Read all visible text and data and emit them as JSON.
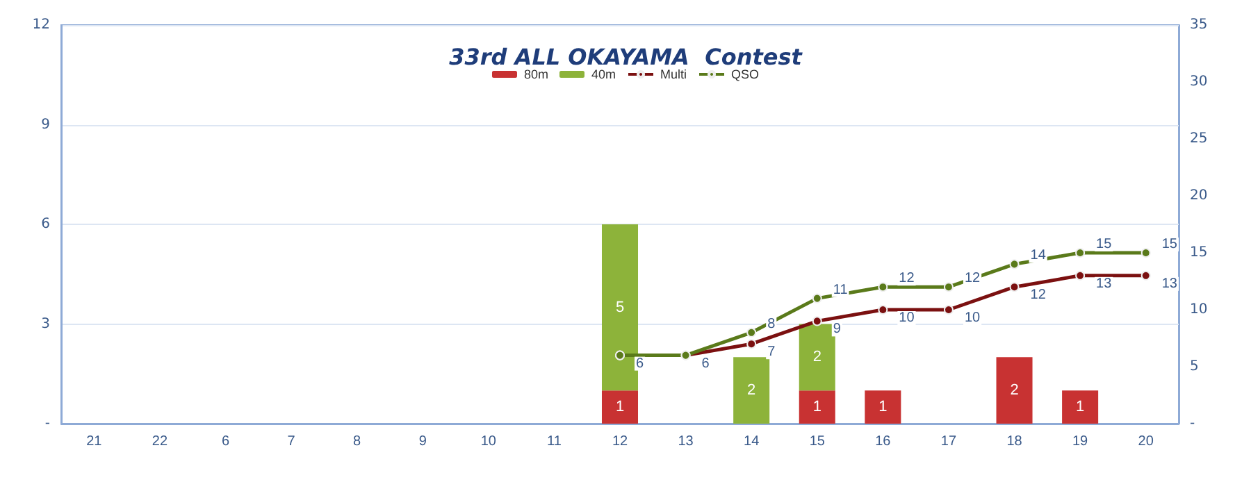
{
  "chart_data": {
    "type": "bar",
    "title": "33rd ALL OKAYAMA  Contest",
    "categories": [
      "21",
      "22",
      "6",
      "7",
      "8",
      "9",
      "10",
      "11",
      "12",
      "13",
      "14",
      "15",
      "16",
      "17",
      "18",
      "19",
      "20"
    ],
    "stacked": true,
    "data_labels": true,
    "legend": "top",
    "grid": "y",
    "marker": "circle",
    "ylim": [
      0,
      12
    ],
    "yticks": [
      {
        "value": 0,
        "label": "-"
      },
      3,
      6,
      9,
      12
    ],
    "y2lim": [
      0,
      35
    ],
    "y2ticks": [
      {
        "value": 0,
        "label": "-"
      },
      5,
      10,
      15,
      20,
      25,
      30,
      35
    ],
    "series": [
      {
        "name": "80m",
        "color": "#c83232",
        "values": [
          null,
          null,
          null,
          null,
          null,
          null,
          null,
          null,
          1,
          null,
          null,
          1,
          1,
          null,
          2,
          1,
          null
        ]
      },
      {
        "name": "40m",
        "color": "#8db33a",
        "values": [
          null,
          null,
          null,
          null,
          null,
          null,
          null,
          null,
          5,
          null,
          2,
          2,
          null,
          null,
          null,
          null,
          null
        ]
      },
      {
        "name": "Multi",
        "type": "line",
        "axis": "y2",
        "color": "#7b1010",
        "values": [
          null,
          null,
          null,
          null,
          null,
          null,
          null,
          null,
          6,
          6,
          7,
          9,
          10,
          10,
          12,
          13,
          13
        ]
      },
      {
        "name": "QSO",
        "type": "line",
        "axis": "y2",
        "color": "#5a7a1a",
        "values": [
          null,
          null,
          null,
          null,
          null,
          null,
          null,
          null,
          6,
          6,
          8,
          11,
          12,
          12,
          14,
          15,
          15
        ],
        "value_labels": [
          null,
          null,
          null,
          null,
          null,
          null,
          null,
          null,
          null,
          null,
          "8",
          "11",
          "12",
          "12",
          "14",
          "15",
          "15"
        ]
      }
    ]
  }
}
